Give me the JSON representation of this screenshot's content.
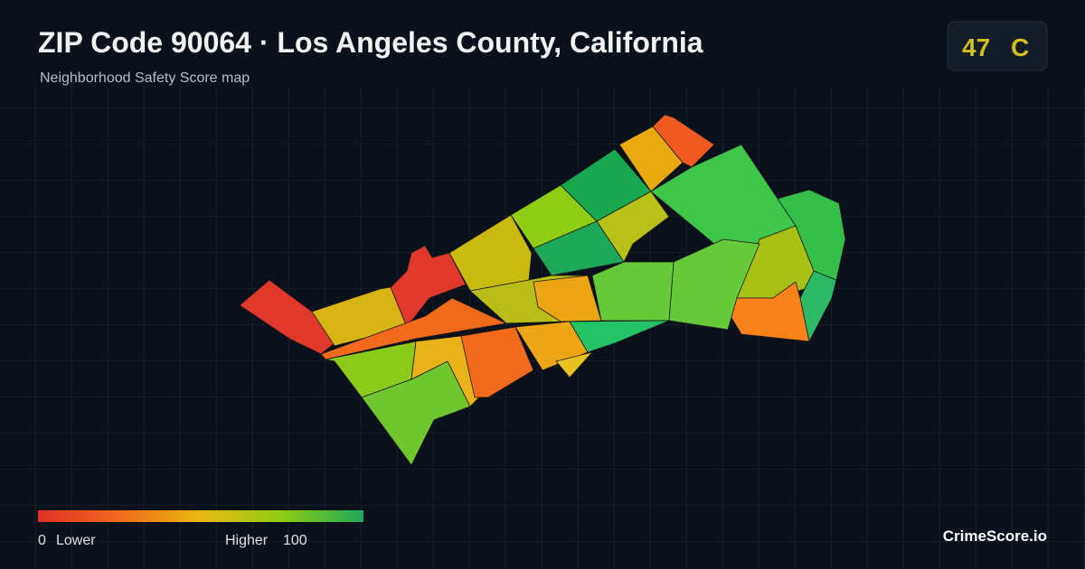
{
  "header": {
    "title": "ZIP Code 90064 · Los Angeles County, California",
    "subtitle": "Neighborhood Safety Score map"
  },
  "score": {
    "value": "47",
    "grade": "C"
  },
  "legend": {
    "min": "0",
    "low_label": "Lower",
    "high_label": "Higher",
    "max": "100"
  },
  "brand": "CrimeScore.io"
}
